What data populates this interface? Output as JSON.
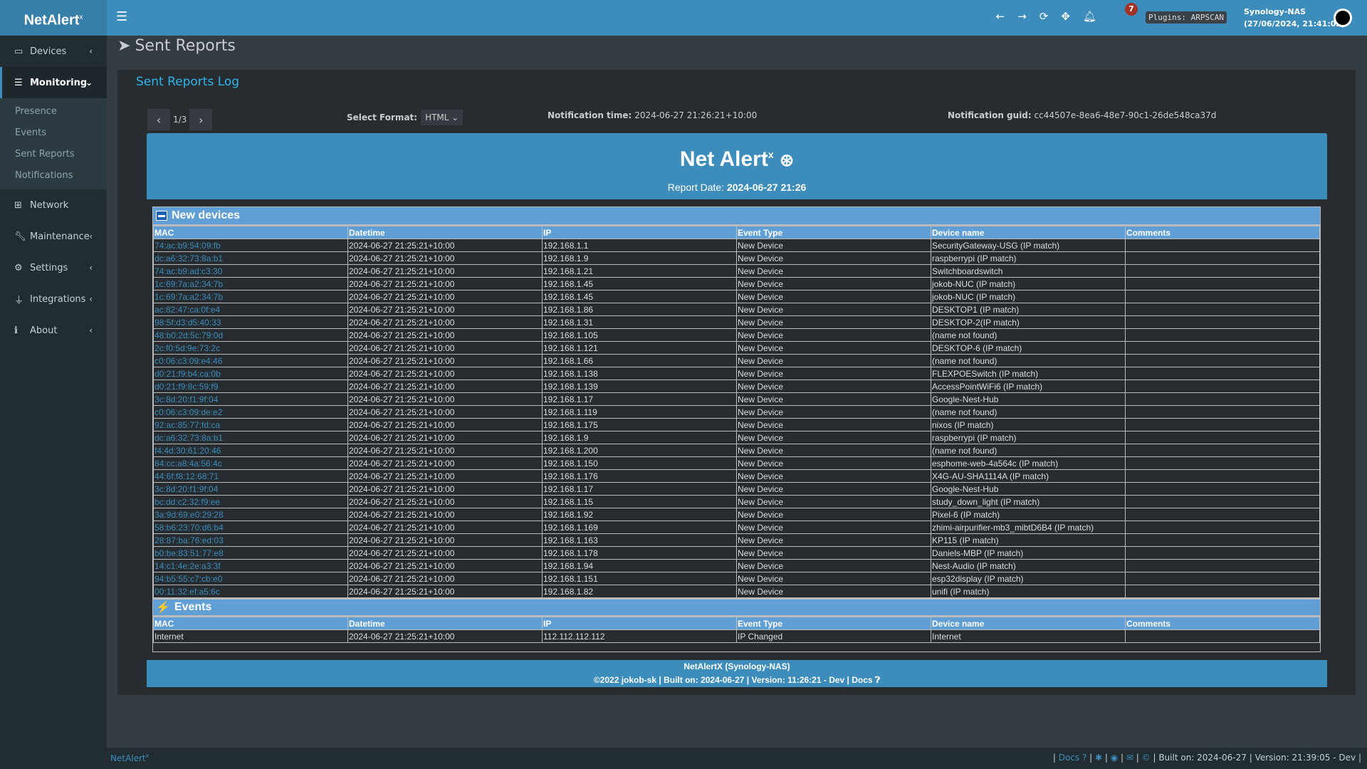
{
  "app": {
    "logo": "NetAlert",
    "logo_sup": "x"
  },
  "header": {
    "notifications_count": "7",
    "plugins": "Plugins: ARPSCAN",
    "host": "Synology-NAS",
    "datetime": "(27/06/2024, 21:41:02)"
  },
  "sidebar": {
    "items": [
      {
        "label": "Devices",
        "icon": "laptop-icon"
      },
      {
        "label": "Monitoring",
        "icon": "chart-icon"
      },
      {
        "label": "Network",
        "icon": "sitemap-icon"
      },
      {
        "label": "Maintenance",
        "icon": "wrench-icon"
      },
      {
        "label": "Settings",
        "icon": "gear-icon"
      },
      {
        "label": "Integrations",
        "icon": "plug-icon"
      },
      {
        "label": "About",
        "icon": "info-icon"
      }
    ],
    "submenu": [
      "Presence",
      "Events",
      "Sent Reports",
      "Notifications"
    ]
  },
  "page": {
    "title": "Sent Reports",
    "box_title": "Sent Reports Log",
    "pager": "1/3",
    "format_label": "Select Format:",
    "format_value": "HTML",
    "notif_time_label": "Notification time:",
    "notif_time": "2024-06-27 21:26:21+10:00",
    "notif_guid_label": "Notification guid:",
    "notif_guid": "cc44507e-8ea6-48e7-90c1-26de548ca37d"
  },
  "report": {
    "title": "Net Alert",
    "title_sup": "x",
    "date_label": "Report Date:",
    "date": "2024-06-27 21:26",
    "columns": [
      "MAC",
      "Datetime",
      "IP",
      "Event Type",
      "Device name",
      "Comments"
    ],
    "new_devices_title": "New devices",
    "new_devices": [
      [
        "74:ac:b9:54:09:fb",
        "2024-06-27 21:25:21+10:00",
        "192.168.1.1",
        "New Device",
        "SecurityGateway-USG (IP match)",
        ""
      ],
      [
        "dc:a6:32:73:8a:b1",
        "2024-06-27 21:25:21+10:00",
        "192.168.1.9",
        "New Device",
        "raspberrypi (IP match)",
        ""
      ],
      [
        "74:ac:b9:ad:c3:30",
        "2024-06-27 21:25:21+10:00",
        "192.168.1.21",
        "New Device",
        "Switchboardswitch",
        ""
      ],
      [
        "1c:69:7a:a2:34:7b",
        "2024-06-27 21:25:21+10:00",
        "192.168.1.45",
        "New Device",
        "jokob-NUC (IP match)",
        ""
      ],
      [
        "1c:69:7a:a2:34:7b",
        "2024-06-27 21:25:21+10:00",
        "192.168.1.45",
        "New Device",
        "jokob-NUC (IP match)",
        ""
      ],
      [
        "ac:82:47:ca:0f:e4",
        "2024-06-27 21:25:21+10:00",
        "192.168.1.86",
        "New Device",
        "DESKTOP1 (IP match)",
        ""
      ],
      [
        "98:5f:d3:d5:40:33",
        "2024-06-27 21:25:21+10:00",
        "192.168.1.31",
        "New Device",
        "DESKTOP-2(IP match)",
        ""
      ],
      [
        "48:b0:2d:5c:79:0d",
        "2024-06-27 21:25:21+10:00",
        "192.168.1.105",
        "New Device",
        "(name not found)",
        ""
      ],
      [
        "2c:f0:5d:9e:73:2c",
        "2024-06-27 21:25:21+10:00",
        "192.168.1.121",
        "New Device",
        "DESKTOP-6 (IP match)",
        ""
      ],
      [
        "c0:06:c3:09:e4:46",
        "2024-06-27 21:25:21+10:00",
        "192.168.1.66",
        "New Device",
        "(name not found)",
        ""
      ],
      [
        "d0:21:f9:b4:ca:0b",
        "2024-06-27 21:25:21+10:00",
        "192.168.1.138",
        "New Device",
        "FLEXPOESwitch (IP match)",
        ""
      ],
      [
        "d0:21:f9:8c:59:f9",
        "2024-06-27 21:25:21+10:00",
        "192.168.1.139",
        "New Device",
        "AccessPointWiFi6 (IP match)",
        ""
      ],
      [
        "3c:8d:20:f1:9f:04",
        "2024-06-27 21:25:21+10:00",
        "192.168.1.17",
        "New Device",
        "Google-Nest-Hub",
        ""
      ],
      [
        "c0:06:c3:09:de:e2",
        "2024-06-27 21:25:21+10:00",
        "192.168.1.119",
        "New Device",
        "(name not found)",
        ""
      ],
      [
        "92:ac:85:77:fd:ca",
        "2024-06-27 21:25:21+10:00",
        "192.168.1.175",
        "New Device",
        "nixos (IP match)",
        ""
      ],
      [
        "dc:a6:32:73:8a:b1",
        "2024-06-27 21:25:21+10:00",
        "192.168.1.9",
        "New Device",
        "raspberrypi (IP match)",
        ""
      ],
      [
        "f4:4d:30:61:20:46",
        "2024-06-27 21:25:21+10:00",
        "192.168.1.200",
        "New Device",
        "(name not found)",
        ""
      ],
      [
        "84:cc:a8:4a:56:4c",
        "2024-06-27 21:25:21+10:00",
        "192.168.1.150",
        "New Device",
        "esphome-web-4a564c (IP match)",
        ""
      ],
      [
        "44:6f:f8:12:68:71",
        "2024-06-27 21:25:21+10:00",
        "192.168.1.176",
        "New Device",
        "X4G-AU-SHA1114A (IP match)",
        ""
      ],
      [
        "3c:8d:20:f1:9f:04",
        "2024-06-27 21:25:21+10:00",
        "192.168.1.17",
        "New Device",
        "Google-Nest-Hub",
        ""
      ],
      [
        "bc:dd:c2:32:f9:ee",
        "2024-06-27 21:25:21+10:00",
        "192.168.1.15",
        "New Device",
        "study_down_light (IP match)",
        ""
      ],
      [
        "3a:9d:69:e0:29:28",
        "2024-06-27 21:25:21+10:00",
        "192.168.1.92",
        "New Device",
        "Pixel-6 (IP match)",
        ""
      ],
      [
        "58:b6:23:70:d6:b4",
        "2024-06-27 21:25:21+10:00",
        "192.168.1.169",
        "New Device",
        "zhimi-airpurifier-mb3_mibtD6B4 (IP match)",
        ""
      ],
      [
        "28:87:ba:76:ed:03",
        "2024-06-27 21:25:21+10:00",
        "192.168.1.163",
        "New Device",
        "KP115 (IP match)",
        ""
      ],
      [
        "b0:be:83:51:77:e8",
        "2024-06-27 21:25:21+10:00",
        "192.168.1.178",
        "New Device",
        "Daniels-MBP (IP match)",
        ""
      ],
      [
        "14:c1:4e:2e:a3:3f",
        "2024-06-27 21:25:21+10:00",
        "192.168.1.94",
        "New Device",
        "Nest-Audio (IP match)",
        ""
      ],
      [
        "94:b5:55:c7:cb:e0",
        "2024-06-27 21:25:21+10:00",
        "192.168.1.151",
        "New Device",
        "esp32display (IP match)",
        ""
      ],
      [
        "00:11:32:ef:a5:6c",
        "2024-06-27 21:25:21+10:00",
        "192.168.1.82",
        "New Device",
        "unifi (IP match)",
        ""
      ]
    ],
    "events_title": "Events",
    "events": [
      [
        "Internet",
        "2024-06-27 21:25:21+10:00",
        "112.112.112.112",
        "IP Changed",
        "Internet",
        ""
      ]
    ],
    "footer_line1": "NetAlertX (Synology-NAS)",
    "footer_line2": "©2022 jokob-sk | Built on: 2024-06-27 | Version: 11:26:21 - Dev | Docs"
  },
  "footer": {
    "brand": "NetAlert",
    "brand_sup": "x",
    "docs": "Docs",
    "built": "| Built on: 2024-06-27 | Version: 21:39:05 - Dev |"
  }
}
